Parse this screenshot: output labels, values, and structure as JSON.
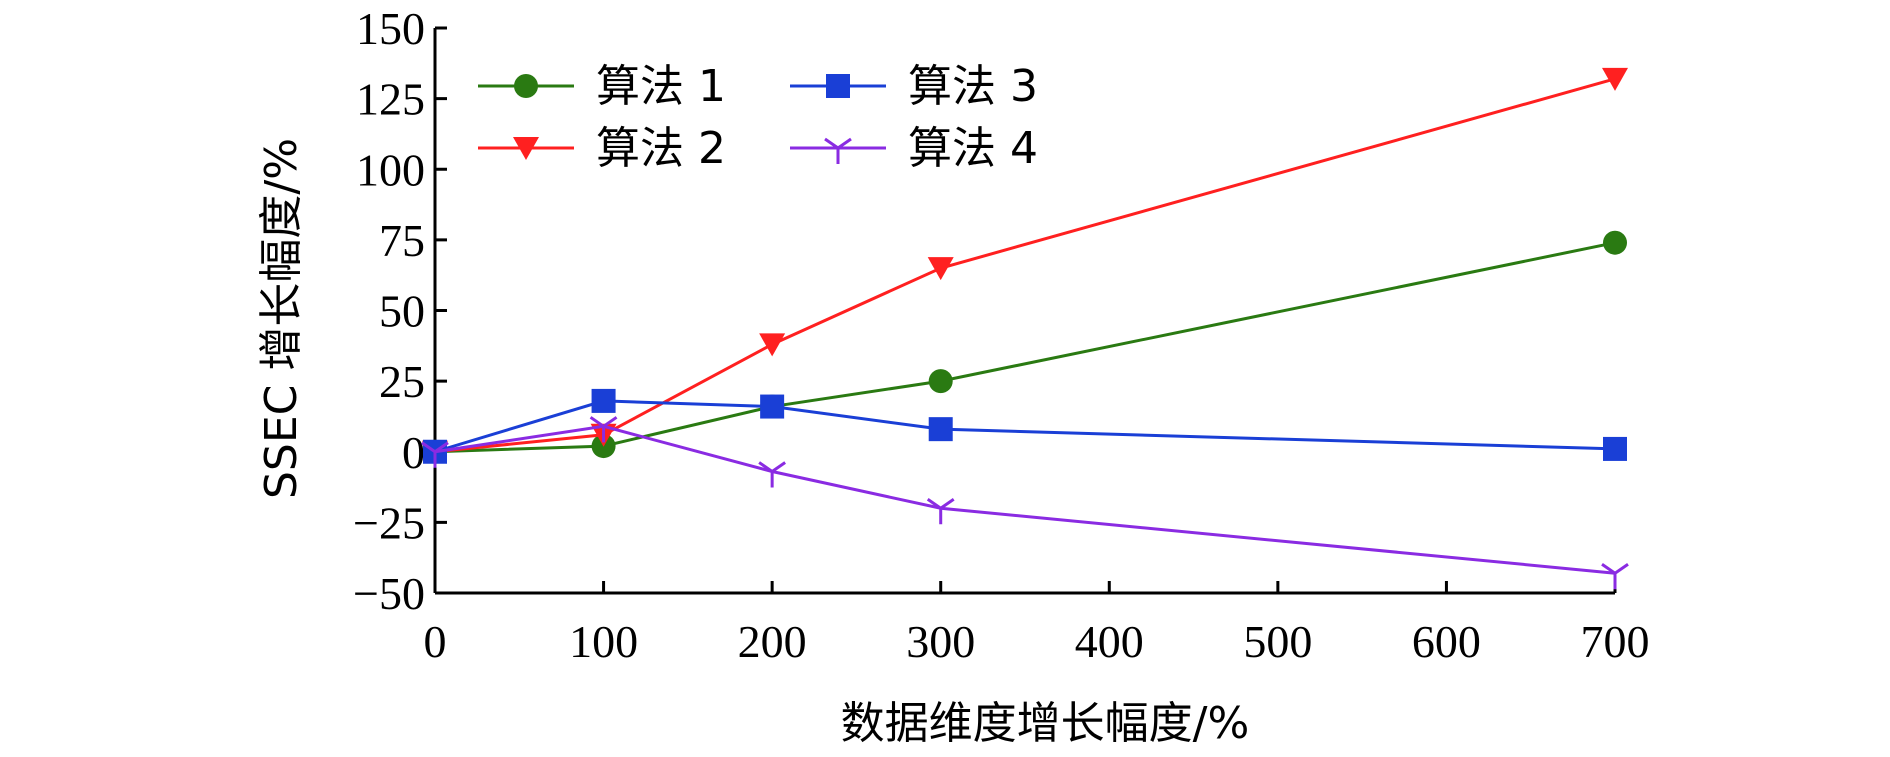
{
  "chart_data": {
    "type": "line",
    "title": "",
    "xlabel": "数据维度增长幅度/%",
    "ylabel": "SSEC 增长幅度/%",
    "x": [
      0,
      100,
      200,
      300,
      700
    ],
    "xticks": [
      0,
      100,
      200,
      300,
      400,
      500,
      600,
      700
    ],
    "xlim": [
      0,
      700
    ],
    "ylim": [
      -50,
      150
    ],
    "yticks": [
      -50,
      -25,
      0,
      25,
      50,
      75,
      100,
      125,
      150
    ],
    "ytick_labels": [
      "−50",
      "−25",
      "0",
      "25",
      "50",
      "75",
      "100",
      "125",
      "150"
    ],
    "grid": false,
    "legend_position": "top-left",
    "series": [
      {
        "name": "算法 1",
        "color": "#2a7a12",
        "marker": "circle",
        "values": [
          0,
          2,
          16,
          25,
          74
        ]
      },
      {
        "name": "算法 2",
        "color": "#ff2020",
        "marker": "triangle-down",
        "values": [
          0,
          6,
          38,
          65,
          132
        ]
      },
      {
        "name": "算法 3",
        "color": "#1a3fd6",
        "marker": "square",
        "values": [
          0,
          18,
          16,
          8,
          1
        ]
      },
      {
        "name": "算法 4",
        "color": "#8a2be2",
        "marker": "tri-down",
        "values": [
          0,
          9,
          -7,
          -20,
          -43
        ]
      }
    ]
  }
}
